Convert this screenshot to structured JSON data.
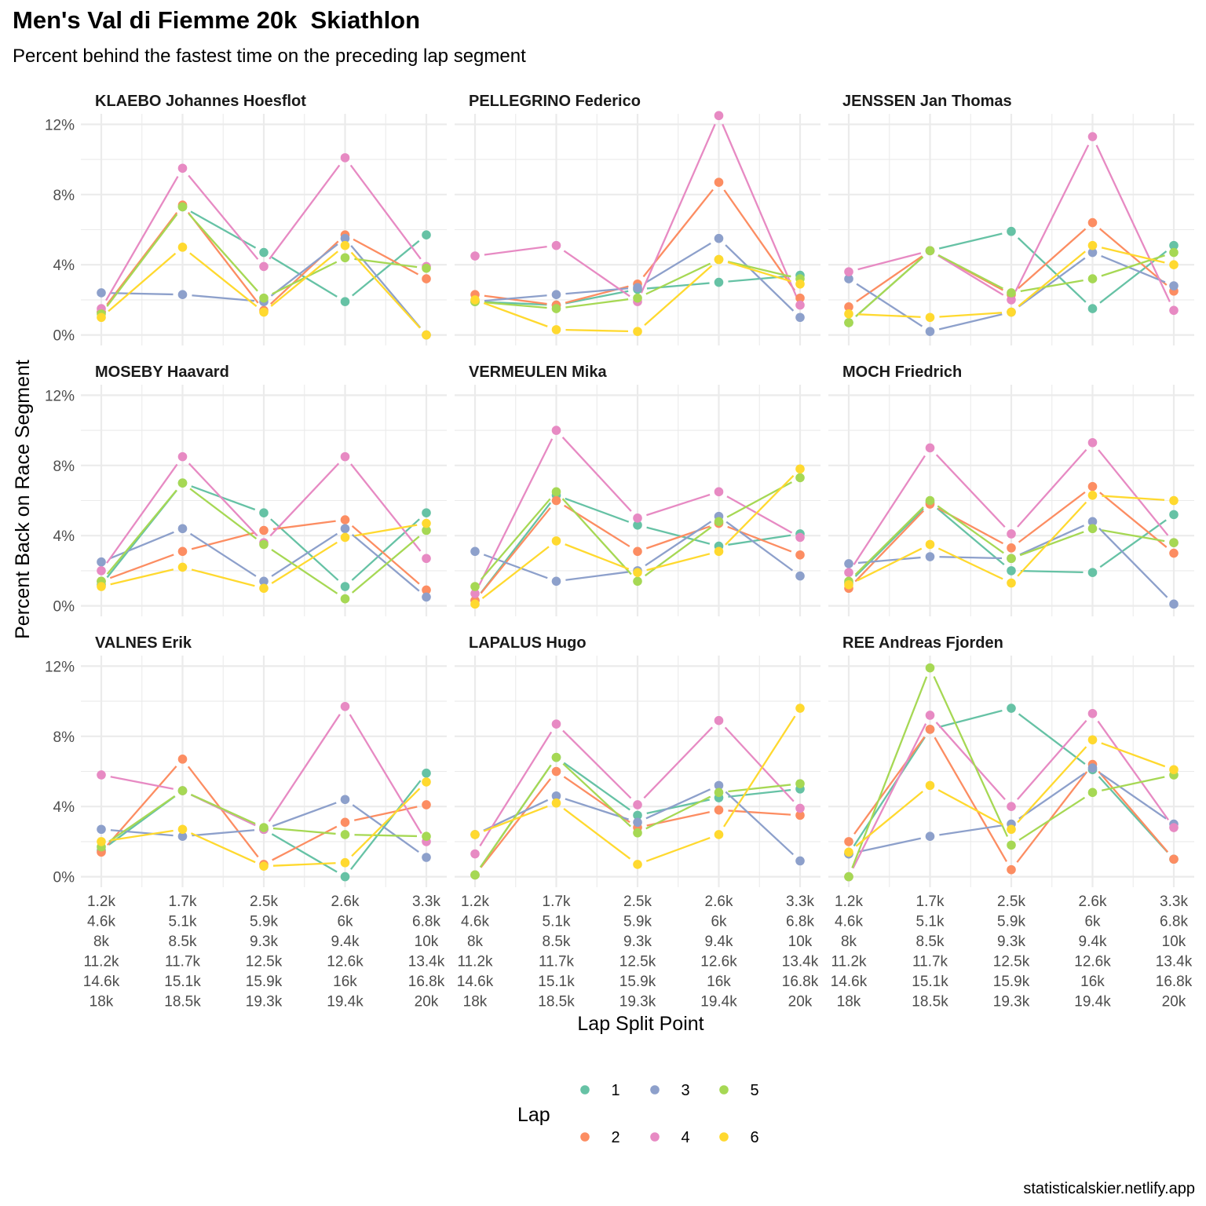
{
  "title": "Men's Val di Fiemme 20k  Skiathlon",
  "subtitle": "Percent behind the fastest time on the preceding lap segment",
  "caption": "statisticalskier.netlify.app",
  "colors": {
    "lap1": "#66C2A5",
    "lap2": "#FC8D62",
    "lap3": "#8DA0CB",
    "lap4": "#E78AC3",
    "lap5": "#A6D854",
    "lap6": "#FFD92F",
    "grid": "#ebebeb"
  },
  "chart_data": {
    "type": "line",
    "facet_layout": "3x3",
    "xlabel": "Lap Split Point",
    "ylabel": "Percent Back on Race Segment",
    "x_categories": [
      [
        "1.2k",
        "4.6k",
        "8k",
        "11.2k",
        "14.6k",
        "18k"
      ],
      [
        "1.7k",
        "5.1k",
        "8.5k",
        "11.7k",
        "15.1k",
        "18.5k"
      ],
      [
        "2.5k",
        "5.9k",
        "9.3k",
        "12.5k",
        "15.9k",
        "19.3k"
      ],
      [
        "2.6k",
        "6k",
        "9.4k",
        "12.6k",
        "16k",
        "19.4k"
      ],
      [
        "3.3k",
        "6.8k",
        "10k",
        "13.4k",
        "16.8k",
        "20k"
      ]
    ],
    "y_ticks": [
      "0%",
      "4%",
      "8%",
      "12%"
    ],
    "y_tick_values": [
      0,
      4,
      8,
      12
    ],
    "ylim": [
      -0.6,
      12.6
    ],
    "legend": {
      "title": "Lap",
      "position": "bottom",
      "entries": [
        "1",
        "2",
        "3",
        "4",
        "5",
        "6"
      ]
    },
    "facets": [
      {
        "name": "KLAEBO Johannes Hoesflot",
        "series": [
          {
            "lap": "1",
            "values": [
              1.3,
              7.3,
              4.7,
              1.9,
              5.7
            ]
          },
          {
            "lap": "2",
            "values": [
              1.3,
              7.4,
              1.4,
              5.7,
              3.2
            ]
          },
          {
            "lap": "3",
            "values": [
              2.4,
              2.3,
              1.9,
              5.5,
              0.0
            ]
          },
          {
            "lap": "4",
            "values": [
              1.5,
              9.5,
              3.9,
              10.1,
              3.9
            ]
          },
          {
            "lap": "5",
            "values": [
              1.2,
              7.3,
              2.1,
              4.4,
              3.8
            ]
          },
          {
            "lap": "6",
            "values": [
              1.0,
              5.0,
              1.3,
              5.1,
              0.0
            ]
          }
        ]
      },
      {
        "name": "PELLEGRINO Federico",
        "series": [
          {
            "lap": "1",
            "values": [
              1.9,
              1.7,
              2.6,
              3.0,
              3.4
            ]
          },
          {
            "lap": "2",
            "values": [
              2.3,
              1.7,
              2.9,
              8.7,
              2.1
            ]
          },
          {
            "lap": "3",
            "values": [
              1.9,
              2.3,
              2.7,
              5.5,
              1.0
            ]
          },
          {
            "lap": "4",
            "values": [
              4.5,
              5.1,
              1.9,
              12.5,
              1.7
            ]
          },
          {
            "lap": "5",
            "values": [
              1.9,
              1.5,
              2.1,
              4.3,
              3.2
            ]
          },
          {
            "lap": "6",
            "values": [
              2.0,
              0.3,
              0.2,
              4.3,
              2.9
            ]
          }
        ]
      },
      {
        "name": "JENSSEN Jan Thomas",
        "series": [
          {
            "lap": "1",
            "values": [
              0.7,
              4.8,
              5.9,
              1.5,
              5.1
            ]
          },
          {
            "lap": "2",
            "values": [
              1.6,
              4.8,
              2.3,
              6.4,
              2.5
            ]
          },
          {
            "lap": "3",
            "values": [
              3.2,
              0.2,
              1.3,
              4.7,
              2.8
            ]
          },
          {
            "lap": "4",
            "values": [
              3.6,
              4.8,
              2.0,
              11.3,
              1.4
            ]
          },
          {
            "lap": "5",
            "values": [
              0.7,
              4.8,
              2.4,
              3.2,
              4.7
            ]
          },
          {
            "lap": "6",
            "values": [
              1.2,
              1.0,
              1.3,
              5.1,
              4.0
            ]
          }
        ]
      },
      {
        "name": "MOSEBY Haavard",
        "series": [
          {
            "lap": "1",
            "values": [
              1.2,
              7.0,
              5.3,
              1.1,
              5.3
            ]
          },
          {
            "lap": "2",
            "values": [
              1.4,
              3.1,
              4.3,
              4.9,
              0.9
            ]
          },
          {
            "lap": "3",
            "values": [
              2.5,
              4.4,
              1.4,
              4.4,
              0.5
            ]
          },
          {
            "lap": "4",
            "values": [
              2.0,
              8.5,
              3.6,
              8.5,
              2.7
            ]
          },
          {
            "lap": "5",
            "values": [
              1.4,
              7.0,
              3.5,
              0.4,
              4.3
            ]
          },
          {
            "lap": "6",
            "values": [
              1.1,
              2.2,
              1.0,
              3.9,
              4.7
            ]
          }
        ]
      },
      {
        "name": "VERMEULEN Mika",
        "series": [
          {
            "lap": "1",
            "values": [
              0.3,
              6.3,
              4.6,
              3.4,
              4.1
            ]
          },
          {
            "lap": "2",
            "values": [
              0.3,
              6.0,
              3.1,
              4.7,
              2.9
            ]
          },
          {
            "lap": "3",
            "values": [
              3.1,
              1.4,
              2.0,
              5.1,
              1.7
            ]
          },
          {
            "lap": "4",
            "values": [
              0.7,
              10.0,
              5.0,
              6.5,
              3.9
            ]
          },
          {
            "lap": "5",
            "values": [
              1.1,
              6.5,
              1.4,
              4.8,
              7.3
            ]
          },
          {
            "lap": "6",
            "values": [
              0.1,
              3.7,
              1.9,
              3.1,
              7.8
            ]
          }
        ]
      },
      {
        "name": "MOCH Friedrich",
        "series": [
          {
            "lap": "1",
            "values": [
              1.3,
              5.9,
              2.0,
              1.9,
              5.2
            ]
          },
          {
            "lap": "2",
            "values": [
              1.0,
              5.8,
              3.3,
              6.8,
              3.0
            ]
          },
          {
            "lap": "3",
            "values": [
              2.4,
              2.8,
              2.7,
              4.8,
              0.1
            ]
          },
          {
            "lap": "4",
            "values": [
              1.9,
              9.0,
              4.1,
              9.3,
              3.6
            ]
          },
          {
            "lap": "5",
            "values": [
              1.4,
              6.0,
              2.7,
              4.4,
              3.6
            ]
          },
          {
            "lap": "6",
            "values": [
              1.2,
              3.5,
              1.3,
              6.3,
              6.0
            ]
          }
        ]
      },
      {
        "name": "VALNES Erik",
        "series": [
          {
            "lap": "1",
            "values": [
              1.5,
              4.9,
              2.7,
              0.0,
              5.9
            ]
          },
          {
            "lap": "2",
            "values": [
              1.4,
              6.7,
              0.7,
              3.1,
              4.1
            ]
          },
          {
            "lap": "3",
            "values": [
              2.7,
              2.3,
              2.7,
              4.4,
              1.1
            ]
          },
          {
            "lap": "4",
            "values": [
              5.8,
              4.9,
              2.7,
              9.7,
              2.0
            ]
          },
          {
            "lap": "5",
            "values": [
              1.7,
              4.9,
              2.8,
              2.4,
              2.3
            ]
          },
          {
            "lap": "6",
            "values": [
              2.0,
              2.7,
              0.6,
              0.8,
              5.4
            ]
          }
        ]
      },
      {
        "name": "LAPALUS Hugo",
        "series": [
          {
            "lap": "1",
            "values": [
              0.1,
              6.8,
              3.5,
              4.5,
              5.0
            ]
          },
          {
            "lap": "2",
            "values": [
              0.1,
              6.0,
              2.8,
              3.8,
              3.5
            ]
          },
          {
            "lap": "3",
            "values": [
              2.4,
              4.6,
              3.1,
              5.2,
              0.9
            ]
          },
          {
            "lap": "4",
            "values": [
              1.3,
              8.7,
              4.1,
              8.9,
              3.9
            ]
          },
          {
            "lap": "5",
            "values": [
              0.1,
              6.8,
              2.5,
              4.8,
              5.3
            ]
          },
          {
            "lap": "6",
            "values": [
              2.4,
              4.2,
              0.7,
              2.4,
              9.6
            ]
          }
        ]
      },
      {
        "name": "REE Andreas Fjorden",
        "series": [
          {
            "lap": "1",
            "values": [
              1.3,
              8.4,
              9.6,
              6.1,
              1.0
            ]
          },
          {
            "lap": "2",
            "values": [
              2.0,
              8.4,
              0.4,
              6.4,
              1.0
            ]
          },
          {
            "lap": "3",
            "values": [
              1.3,
              2.3,
              3.0,
              6.2,
              3.0
            ]
          },
          {
            "lap": "4",
            "values": [
              0.0,
              9.2,
              4.0,
              9.3,
              2.8
            ]
          },
          {
            "lap": "5",
            "values": [
              0.0,
              11.9,
              1.8,
              4.8,
              5.8
            ]
          },
          {
            "lap": "6",
            "values": [
              1.4,
              5.2,
              2.7,
              7.8,
              6.1
            ]
          }
        ]
      }
    ]
  }
}
